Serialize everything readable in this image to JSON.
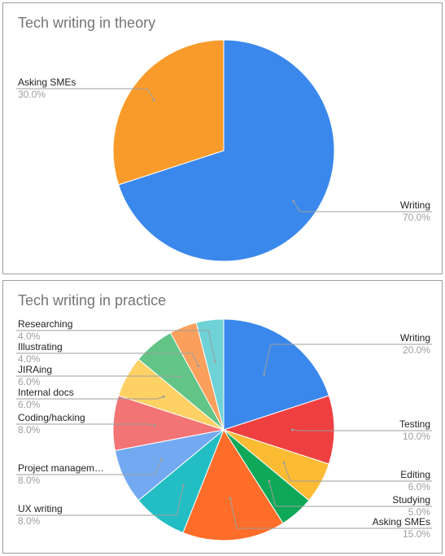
{
  "chart_data": [
    {
      "type": "pie",
      "title": "Tech writing in theory",
      "slices": [
        {
          "label": "Writing",
          "value": 70.0,
          "display": "70.0%",
          "color": "#3b88ec"
        },
        {
          "label": "Asking SMEs",
          "value": 30.0,
          "display": "30.0%",
          "color": "#f99b2a"
        }
      ]
    },
    {
      "type": "pie",
      "title": "Tech writing in practice",
      "slices": [
        {
          "label": "Writing",
          "value": 20.0,
          "display": "20.0%",
          "color": "#3b88ec"
        },
        {
          "label": "Testing",
          "value": 10.0,
          "display": "10.0%",
          "color": "#ee4040"
        },
        {
          "label": "Editing",
          "value": 6.0,
          "display": "6.0%",
          "color": "#fbbc34"
        },
        {
          "label": "Studying",
          "value": 5.0,
          "display": "5.0%",
          "color": "#0ea858"
        },
        {
          "label": "Asking SMEs",
          "value": 15.0,
          "display": "15.0%",
          "color": "#ff6d2a"
        },
        {
          "label": "UX writing",
          "value": 8.0,
          "display": "8.0%",
          "color": "#22bec4"
        },
        {
          "label": "Project managem…",
          "value": 8.0,
          "display": "8.0%",
          "color": "#73a9f1"
        },
        {
          "label": "Coding/hacking",
          "value": 8.0,
          "display": "8.0%",
          "color": "#f27474"
        },
        {
          "label": "Internal docs",
          "value": 6.0,
          "display": "6.0%",
          "color": "#fdd164"
        },
        {
          "label": "JIRAing",
          "value": 6.0,
          "display": "6.0%",
          "color": "#62c487"
        },
        {
          "label": "Illustrating",
          "value": 4.0,
          "display": "4.0%",
          "color": "#fba05c"
        },
        {
          "label": "Researching",
          "value": 4.0,
          "display": "4.0%",
          "color": "#6fd2d6"
        }
      ]
    }
  ]
}
